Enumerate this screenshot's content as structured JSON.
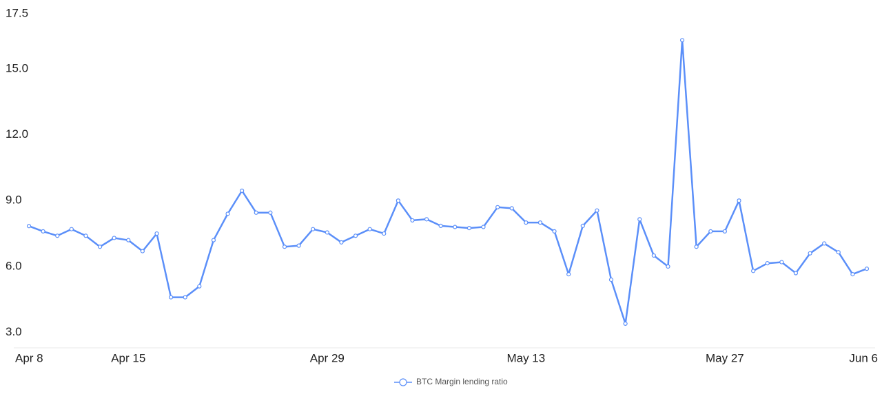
{
  "chart_data": {
    "type": "line",
    "categories": [
      "Apr 8",
      null,
      null,
      null,
      null,
      null,
      null,
      "Apr 15",
      null,
      null,
      null,
      null,
      null,
      null,
      null,
      null,
      null,
      null,
      null,
      null,
      null,
      "Apr 29",
      null,
      null,
      null,
      null,
      null,
      null,
      null,
      null,
      null,
      null,
      null,
      null,
      null,
      "May 13",
      null,
      null,
      null,
      null,
      null,
      null,
      null,
      null,
      null,
      null,
      null,
      null,
      null,
      "May 27",
      null,
      null,
      null,
      null,
      null,
      null,
      null,
      null,
      null,
      "Jun 6"
    ],
    "series": [
      {
        "name": "BTC Margin lending ratio",
        "color": "#5b8ff9",
        "values": [
          7.84,
          7.6,
          7.4,
          7.7,
          7.4,
          6.9,
          7.3,
          7.2,
          6.7,
          7.5,
          4.6,
          4.6,
          5.1,
          7.2,
          8.4,
          9.45,
          8.45,
          8.45,
          6.9,
          6.95,
          7.7,
          7.55,
          7.1,
          7.4,
          7.7,
          7.5,
          9.0,
          8.1,
          8.15,
          7.85,
          7.8,
          7.75,
          7.8,
          8.7,
          8.65,
          8.0,
          8.0,
          7.6,
          5.65,
          7.85,
          8.55,
          5.4,
          3.4,
          8.15,
          6.5,
          6.0,
          16.3,
          6.9,
          7.6,
          7.6,
          9.0,
          5.8,
          6.15,
          6.2,
          5.7,
          6.6,
          7.05,
          6.65,
          5.65,
          5.9
        ]
      }
    ],
    "ylim": [
      2.3,
      17.5
    ],
    "yticks": [
      {
        "value": 3,
        "label": "3.0"
      },
      {
        "value": 6,
        "label": "6.0"
      },
      {
        "value": 9,
        "label": "9.0"
      },
      {
        "value": 12,
        "label": "12.0"
      },
      {
        "value": 15,
        "label": "15.0"
      },
      17.5
    ],
    "grid": false,
    "legend": "bottom"
  }
}
